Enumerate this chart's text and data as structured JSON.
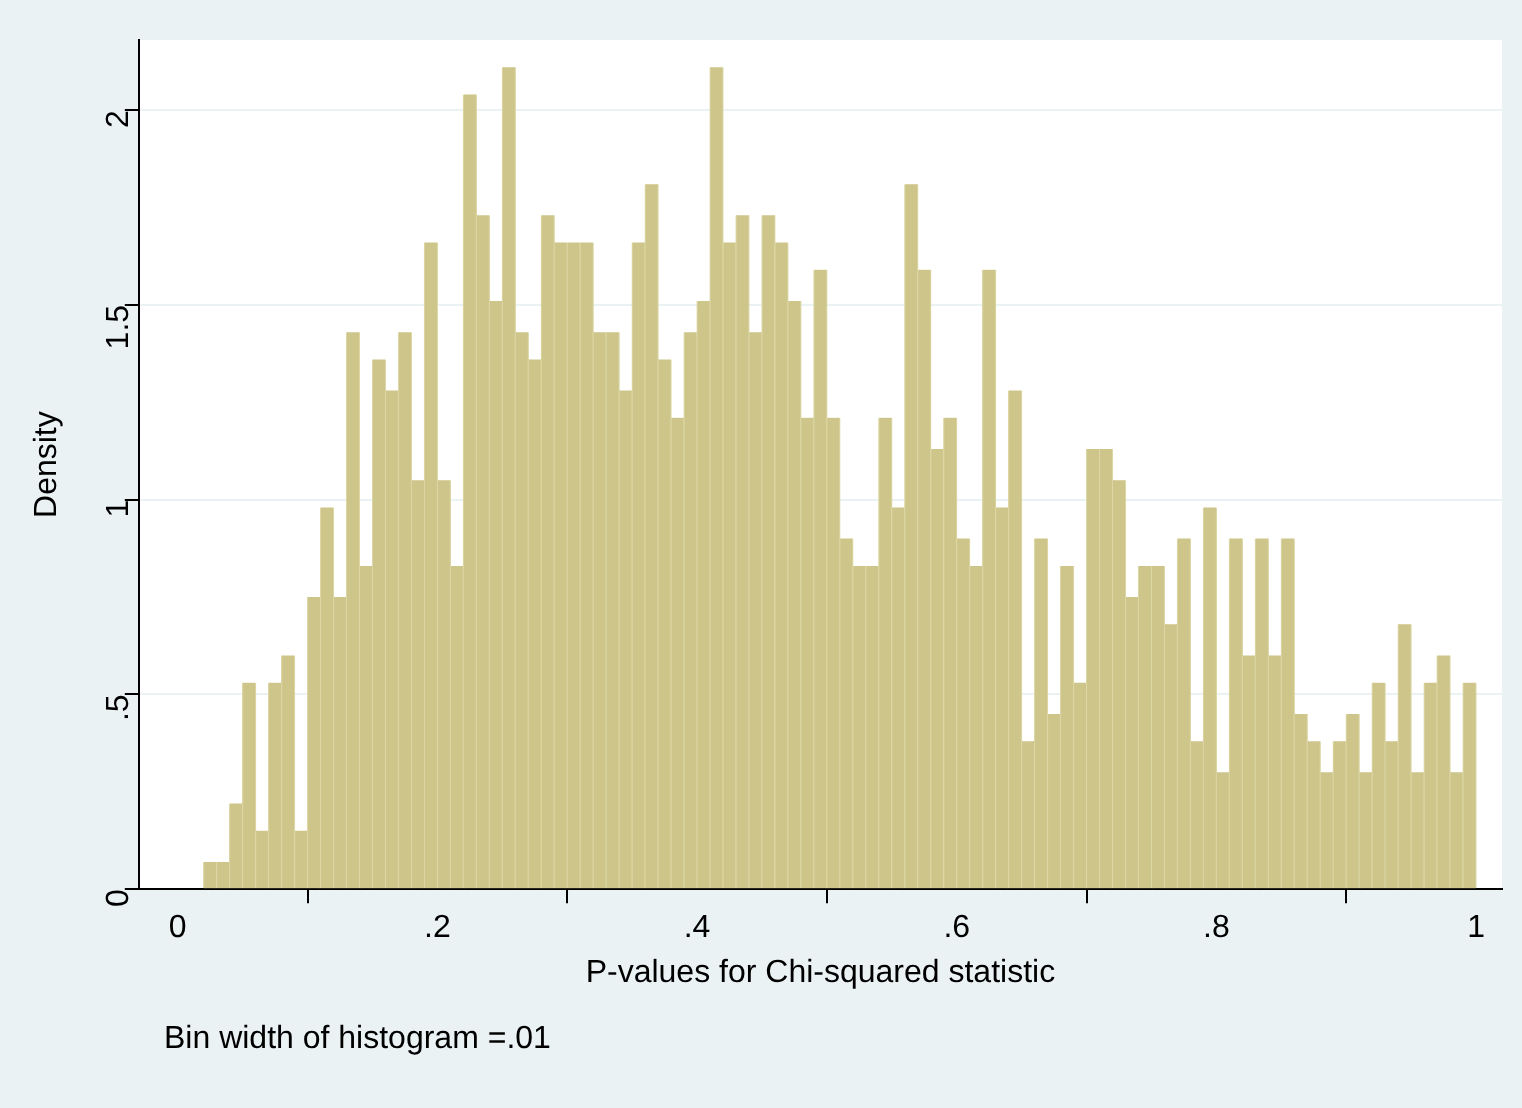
{
  "chart_data": {
    "type": "histogram",
    "xlabel": "P-values for Chi-squared statistic",
    "ylabel": "Density",
    "annotations": [
      "Bin width of histogram =.01"
    ],
    "bins": [
      0.02,
      0.03,
      0.04,
      0.05,
      0.06,
      0.07,
      0.08,
      0.09,
      0.1,
      0.11,
      0.12,
      0.13,
      0.14,
      0.15,
      0.16,
      0.17,
      0.18,
      0.19,
      0.2,
      0.21,
      0.22,
      0.23,
      0.24,
      0.25,
      0.26,
      0.27,
      0.28,
      0.29,
      0.3,
      0.31,
      0.32,
      0.33,
      0.34,
      0.35,
      0.36,
      0.37,
      0.38,
      0.39,
      0.4,
      0.41,
      0.42,
      0.43,
      0.44,
      0.45,
      0.46,
      0.47,
      0.48,
      0.49,
      0.5,
      0.51,
      0.52,
      0.53,
      0.54,
      0.55,
      0.56,
      0.57,
      0.58,
      0.59,
      0.6,
      0.61,
      0.62,
      0.63,
      0.64,
      0.65,
      0.66,
      0.67,
      0.68,
      0.69,
      0.7,
      0.71,
      0.72,
      0.73,
      0.74,
      0.75,
      0.76,
      0.77,
      0.78,
      0.79,
      0.8,
      0.81,
      0.82,
      0.83,
      0.84,
      0.85,
      0.86,
      0.87,
      0.88,
      0.89,
      0.9,
      0.91,
      0.92,
      0.93,
      0.94,
      0.95,
      0.96,
      0.97,
      0.98,
      0.99,
      1.0
    ],
    "values": [
      0.07,
      0.07,
      0.22,
      0.53,
      0.15,
      0.53,
      0.6,
      0.15,
      0.75,
      0.98,
      0.75,
      1.43,
      0.83,
      1.36,
      1.28,
      1.43,
      1.05,
      1.66,
      1.05,
      0.83,
      2.04,
      1.73,
      1.51,
      2.11,
      1.43,
      1.36,
      1.73,
      1.66,
      1.66,
      1.66,
      1.43,
      1.43,
      1.28,
      1.66,
      1.81,
      1.36,
      1.21,
      1.43,
      1.51,
      2.11,
      1.66,
      1.73,
      1.43,
      1.73,
      1.66,
      1.51,
      1.21,
      1.59,
      1.21,
      0.9,
      0.83,
      0.83,
      1.21,
      0.98,
      1.81,
      1.59,
      1.13,
      1.21,
      0.9,
      0.83,
      1.59,
      0.98,
      1.28,
      0.38,
      0.9,
      0.45,
      0.83,
      0.53,
      1.13,
      1.13,
      1.05,
      0.75,
      0.83,
      0.83,
      0.68,
      0.9,
      0.38,
      0.98,
      0.3,
      0.9,
      0.6,
      0.9,
      0.6,
      0.9,
      0.45,
      0.38,
      0.3,
      0.38,
      0.45,
      0.3,
      0.53,
      0.38,
      0.68,
      0.3,
      0.53,
      0.6,
      0.3,
      0.53
    ],
    "color": "#cdc58a",
    "xlim": [
      -0.03,
      1.02
    ],
    "ylim": [
      0,
      2.18
    ],
    "xticks": [
      0,
      {
        "value": 0.2,
        "label": ".2"
      },
      {
        "value": 0.4,
        "label": ".4"
      },
      {
        "value": 0.6,
        "label": ".6"
      },
      {
        "value": 0.8,
        "label": ".8"
      },
      1
    ],
    "yticks": [
      0,
      {
        "value": 0.5,
        "label": ".5"
      },
      1,
      {
        "value": 1.5,
        "label": "1.5"
      },
      2
    ],
    "grid": "y"
  }
}
